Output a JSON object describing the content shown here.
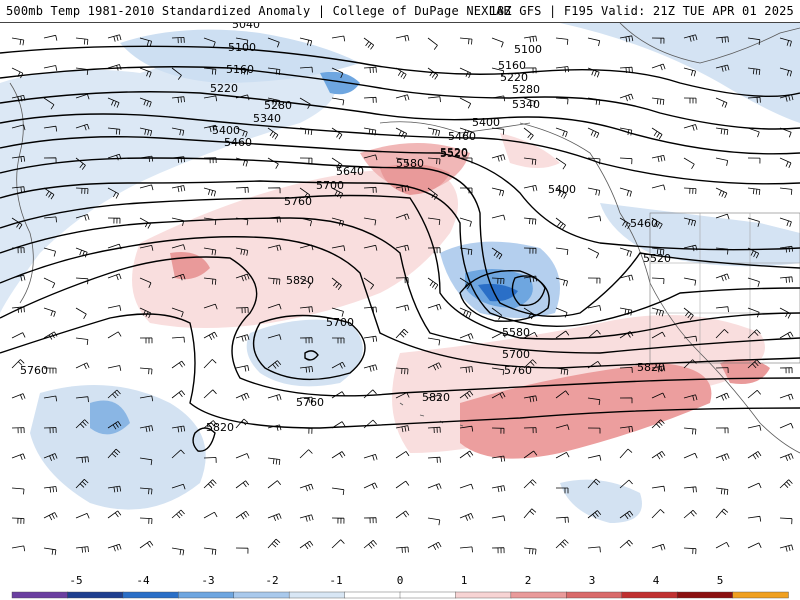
{
  "header": {
    "title_left": "500mb Temp 1981-2010 Standardized Anomaly | College of DuPage NEXLAB",
    "title_right": "18Z GFS | F195 Valid: 21Z TUE APR 01 2025"
  },
  "colors": {
    "cold_strong": "#2a6fc7",
    "cold_mid": "#6ea6e0",
    "cold_light": "#c9dcf0",
    "warm_light": "#f7d3d3",
    "warm_mid": "#e99a9a",
    "warm_strong": "#d96a6a",
    "contour": "#000000",
    "coast": "#5a5a5a"
  },
  "contour_labels": [
    {
      "text": "5040"
    },
    {
      "text": "5100"
    },
    {
      "text": "5160"
    },
    {
      "text": "5220"
    },
    {
      "text": "5280"
    },
    {
      "text": "5340"
    },
    {
      "text": "5400"
    },
    {
      "text": "5460"
    },
    {
      "text": "5640"
    },
    {
      "text": "5700"
    },
    {
      "text": "5760"
    },
    {
      "text": "5820"
    },
    {
      "text": "5580"
    },
    {
      "text": "5520"
    },
    {
      "text": "5100"
    },
    {
      "text": "5160"
    },
    {
      "text": "5220"
    },
    {
      "text": "5280"
    },
    {
      "text": "5340"
    },
    {
      "text": "5400"
    },
    {
      "text": "5460"
    },
    {
      "text": "5520"
    },
    {
      "text": "5400"
    },
    {
      "text": "5460"
    },
    {
      "text": "5520"
    },
    {
      "text": "5580"
    },
    {
      "text": "5700"
    },
    {
      "text": "5760"
    },
    {
      "text": "5820"
    },
    {
      "text": "5700"
    },
    {
      "text": "5760"
    },
    {
      "text": "5820"
    },
    {
      "text": "5820"
    },
    {
      "text": "5760"
    }
  ],
  "colorbar": {
    "ticks": [
      "-5",
      "-4",
      "-3",
      "-2",
      "-1",
      "0",
      "1",
      "2",
      "3",
      "4",
      "5"
    ],
    "colors": [
      "#6b3fa0",
      "#1f3f8f",
      "#2a6fc7",
      "#6ea6e0",
      "#a9c9ec",
      "#d8e6f4",
      "#ffffff",
      "#ffffff",
      "#f7d3d3",
      "#e99a9a",
      "#d96a6a",
      "#c03030",
      "#8b1010",
      "#f0a020"
    ]
  }
}
